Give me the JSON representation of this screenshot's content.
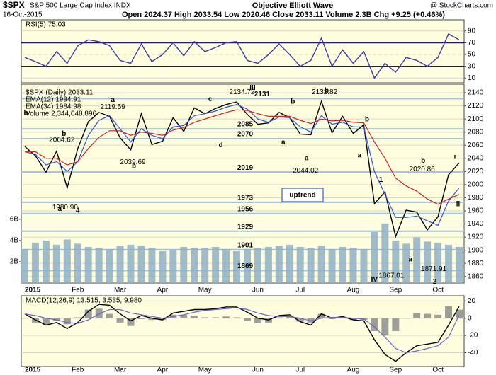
{
  "header": {
    "symbol": "$SPX",
    "name": "S&P 500 Large Cap Index INDX",
    "source": "Objective Elliott Wave",
    "credit": "@ StockCharts.com",
    "date": "16-Oct-2015",
    "quote": "Open 2024.37 High 2033.54 Low 2020.46 Close 2033.11 Volume 2.3B Chg +9.25 (+0.46%)"
  },
  "chart_data": [
    {
      "type": "line",
      "title": "RSI(5) 75.03",
      "series": [
        {
          "color": "#3a3aa8",
          "values": [
            45,
            38,
            30,
            55,
            35,
            65,
            75,
            72,
            65,
            40,
            35,
            68,
            38,
            50,
            70,
            48,
            72,
            55,
            62,
            70,
            72,
            40,
            35,
            50,
            68,
            50,
            30,
            40,
            78,
            30,
            58,
            35,
            55,
            10,
            35,
            20,
            45,
            40,
            30,
            45,
            85,
            75.03
          ]
        }
      ],
      "ylim": [
        2,
        109
      ],
      "yticks": [
        10,
        30,
        50,
        70,
        90
      ]
    },
    {
      "type": "line",
      "categories": [
        "2015",
        null,
        null,
        null,
        null,
        "Feb",
        null,
        null,
        null,
        "Mar",
        null,
        null,
        null,
        "Apr",
        null,
        null,
        null,
        "May",
        null,
        null,
        null,
        null,
        "Jun",
        null,
        null,
        null,
        "Jul",
        null,
        null,
        null,
        null,
        "Aug",
        null,
        null,
        null,
        "Sep",
        null,
        null,
        null,
        "Oct",
        null,
        null
      ],
      "series": [
        {
          "name": "$SPX (Daily) 2033.11",
          "color": "#000000",
          "values": [
            2058,
            2044,
            2019,
            2051,
            1995,
            2055,
            2096,
            2110,
            2104,
            2071,
            2053,
            2108,
            2061,
            2066,
            2102,
            2081,
            2117,
            2108,
            2116,
            2122,
            2126,
            2107,
            2092,
            2094,
            2110,
            2102,
            2077,
            2076,
            2127,
            2079,
            2104,
            2078,
            2091,
            1971,
            1989,
            1921,
            1961,
            1958,
            1931,
            1951,
            2015,
            2033.11
          ]
        },
        {
          "name": "EMA(12) 1994.91",
          "color": "#3355dd",
          "values": [
            2050,
            2046,
            2030,
            2035,
            2020,
            2035,
            2075,
            2098,
            2105,
            2085,
            2065,
            2085,
            2075,
            2070,
            2088,
            2090,
            2105,
            2108,
            2112,
            2118,
            2122,
            2115,
            2100,
            2095,
            2103,
            2102,
            2088,
            2080,
            2105,
            2092,
            2095,
            2088,
            2088,
            2020,
            1985,
            1950,
            1950,
            1952,
            1945,
            1938,
            1975,
            1994.91
          ]
        },
        {
          "name": "EMA(34) 1984.98",
          "color": "#cc2222",
          "values": [
            2050,
            2050,
            2040,
            2040,
            2030,
            2035,
            2055,
            2072,
            2082,
            2082,
            2075,
            2080,
            2078,
            2075,
            2083,
            2087,
            2095,
            2100,
            2105,
            2110,
            2114,
            2113,
            2108,
            2104,
            2104,
            2104,
            2098,
            2093,
            2100,
            2097,
            2098,
            2095,
            2094,
            2065,
            2040,
            2010,
            1998,
            1990,
            1978,
            1970,
            1978,
            1984.98
          ]
        },
        {
          "name": "Volume 2,344,048,896",
          "type": "bar",
          "axis": "y2",
          "color": "#8fb0c4",
          "values": [
            3.2,
            3.8,
            4.0,
            3.6,
            4.1,
            3.7,
            3.4,
            3.3,
            3.2,
            3.5,
            3.6,
            3.5,
            3.3,
            3.0,
            3.1,
            3.4,
            3.3,
            3.3,
            3.4,
            3.2,
            3.0,
            3.2,
            3.3,
            3.4,
            3.5,
            3.6,
            3.4,
            3.3,
            3.5,
            3.2,
            3.4,
            3.3,
            3.2,
            4.8,
            5.6,
            4.0,
            3.7,
            4.3,
            3.9,
            3.8,
            3.6,
            3.4
          ]
        }
      ],
      "ylim": [
        1850,
        2153
      ],
      "yticks": [
        1860,
        1880,
        1900,
        1920,
        1940,
        1960,
        1980,
        2000,
        2020,
        2040,
        2060,
        2080,
        2100,
        2120,
        2140
      ],
      "y2lim": [
        0,
        18.7
      ],
      "y2ticks": [
        {
          "value": 2,
          "label": "2B"
        },
        {
          "value": 4,
          "label": "4B"
        },
        {
          "value": 6,
          "label": "6B"
        }
      ],
      "levels": [
        2131,
        2085,
        2070,
        2019,
        1973,
        1956,
        1929,
        1901,
        1869
      ],
      "annotations": [
        "III",
        "IV",
        "4",
        "1",
        "2",
        "a",
        "b",
        "b",
        "b",
        "a",
        "c",
        "d",
        "b",
        "a",
        "b",
        "a",
        "b",
        "a",
        "b",
        "a",
        "i",
        "ii"
      ],
      "price_labels": [
        "2134.72",
        "2132.82",
        "2119.59",
        "2064.62",
        "2039.69",
        "2044.02",
        "1980.90",
        "2020.86",
        "1867.01",
        "1871.91"
      ],
      "box": "uptrend"
    },
    {
      "type": "line",
      "title": "MACD(12,26,9) 13.515, 3.535, 9.980",
      "series": [
        {
          "color": "#000000",
          "values": [
            5,
            -2,
            -8,
            -5,
            -12,
            -5,
            8,
            16,
            15,
            5,
            -3,
            3,
            0,
            -2,
            6,
            8,
            10,
            10,
            11,
            13,
            13,
            7,
            0,
            -2,
            3,
            4,
            -4,
            -8,
            5,
            0,
            2,
            -2,
            -3,
            -25,
            -42,
            -50,
            -40,
            -32,
            -30,
            -28,
            -8,
            13.515
          ]
        },
        {
          "color": "#6666cc",
          "values": [
            5,
            3,
            0,
            -2,
            -5,
            -6,
            -2,
            5,
            10,
            10,
            6,
            4,
            2,
            0,
            2,
            4,
            7,
            9,
            10,
            11,
            12,
            10,
            6,
            3,
            2,
            2,
            0,
            -3,
            0,
            1,
            1,
            0,
            -1,
            -10,
            -22,
            -35,
            -40,
            -38,
            -35,
            -32,
            -22,
            3.535
          ]
        },
        {
          "type": "bar",
          "color": "#8c8c8c",
          "values": [
            0,
            -5,
            -8,
            -3,
            -7,
            1,
            10,
            11,
            5,
            -5,
            -9,
            -1,
            -2,
            -2,
            4,
            4,
            3,
            1,
            1,
            2,
            1,
            -3,
            -6,
            -5,
            1,
            2,
            -4,
            -5,
            5,
            -1,
            1,
            -2,
            -2,
            -15,
            -20,
            -15,
            0,
            6,
            5,
            4,
            14,
            9.98
          ]
        }
      ],
      "ylim": [
        -56,
        26
      ],
      "yticks": [
        -40,
        -20,
        0,
        20
      ]
    }
  ]
}
